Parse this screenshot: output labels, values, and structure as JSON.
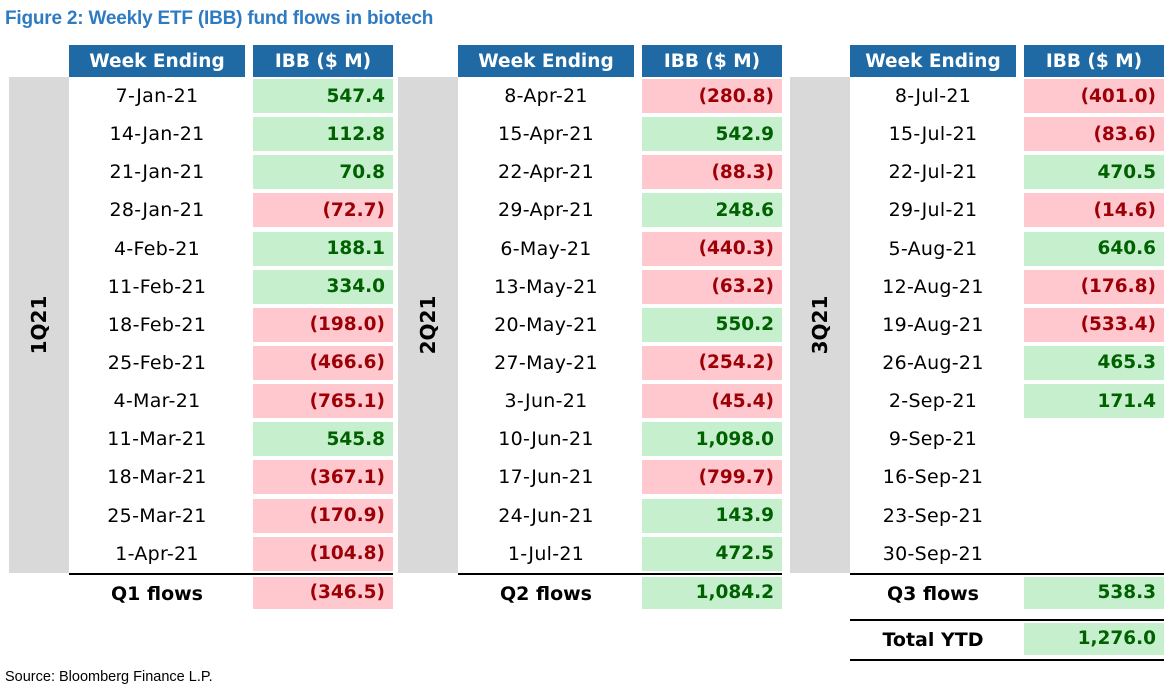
{
  "title": "Figure 2: Weekly ETF (IBB) fund flows in biotech",
  "source": "Source: Bloomberg Finance L.P.",
  "colors": {
    "header_bg": "#1f6aa5",
    "title": "#2f7bc2",
    "positive_bg": "#c6efce",
    "positive_text": "#006100",
    "negative_bg": "#ffc7ce",
    "negative_text": "#9c0006",
    "quarter_bg": "#d9d9d9"
  },
  "tables": [
    {
      "quarter": "1Q21",
      "header_week": "Week Ending",
      "header_ibb": "IBB ($ M)",
      "rows": [
        {
          "date": "7-Jan-21",
          "value": "547.4",
          "sign": "pos"
        },
        {
          "date": "14-Jan-21",
          "value": "112.8",
          "sign": "pos"
        },
        {
          "date": "21-Jan-21",
          "value": "70.8",
          "sign": "pos"
        },
        {
          "date": "28-Jan-21",
          "value": "(72.7)",
          "sign": "neg"
        },
        {
          "date": "4-Feb-21",
          "value": "188.1",
          "sign": "pos"
        },
        {
          "date": "11-Feb-21",
          "value": "334.0",
          "sign": "pos"
        },
        {
          "date": "18-Feb-21",
          "value": "(198.0)",
          "sign": "neg"
        },
        {
          "date": "25-Feb-21",
          "value": "(466.6)",
          "sign": "neg"
        },
        {
          "date": "4-Mar-21",
          "value": "(765.1)",
          "sign": "neg"
        },
        {
          "date": "11-Mar-21",
          "value": "545.8",
          "sign": "pos"
        },
        {
          "date": "18-Mar-21",
          "value": "(367.1)",
          "sign": "neg"
        },
        {
          "date": "25-Mar-21",
          "value": "(170.9)",
          "sign": "neg"
        },
        {
          "date": "1-Apr-21",
          "value": "(104.8)",
          "sign": "neg"
        }
      ],
      "summary": [
        {
          "label": "Q1 flows",
          "value": "(346.5)",
          "sign": "neg"
        }
      ]
    },
    {
      "quarter": "2Q21",
      "header_week": "Week Ending",
      "header_ibb": "IBB ($ M)",
      "rows": [
        {
          "date": "8-Apr-21",
          "value": "(280.8)",
          "sign": "neg"
        },
        {
          "date": "15-Apr-21",
          "value": "542.9",
          "sign": "pos"
        },
        {
          "date": "22-Apr-21",
          "value": "(88.3)",
          "sign": "neg"
        },
        {
          "date": "29-Apr-21",
          "value": "248.6",
          "sign": "pos"
        },
        {
          "date": "6-May-21",
          "value": "(440.3)",
          "sign": "neg"
        },
        {
          "date": "13-May-21",
          "value": "(63.2)",
          "sign": "neg"
        },
        {
          "date": "20-May-21",
          "value": "550.2",
          "sign": "pos"
        },
        {
          "date": "27-May-21",
          "value": "(254.2)",
          "sign": "neg"
        },
        {
          "date": "3-Jun-21",
          "value": "(45.4)",
          "sign": "neg"
        },
        {
          "date": "10-Jun-21",
          "value": "1,098.0",
          "sign": "pos"
        },
        {
          "date": "17-Jun-21",
          "value": "(799.7)",
          "sign": "neg"
        },
        {
          "date": "24-Jun-21",
          "value": "143.9",
          "sign": "pos"
        },
        {
          "date": "1-Jul-21",
          "value": "472.5",
          "sign": "pos"
        }
      ],
      "summary": [
        {
          "label": "Q2 flows",
          "value": "1,084.2",
          "sign": "pos"
        }
      ]
    },
    {
      "quarter": "3Q21",
      "header_week": "Week Ending",
      "header_ibb": "IBB ($ M)",
      "rows": [
        {
          "date": "8-Jul-21",
          "value": "(401.0)",
          "sign": "neg"
        },
        {
          "date": "15-Jul-21",
          "value": "(83.6)",
          "sign": "neg"
        },
        {
          "date": "22-Jul-21",
          "value": "470.5",
          "sign": "pos"
        },
        {
          "date": "29-Jul-21",
          "value": "(14.6)",
          "sign": "neg"
        },
        {
          "date": "5-Aug-21",
          "value": "640.6",
          "sign": "pos"
        },
        {
          "date": "12-Aug-21",
          "value": "(176.8)",
          "sign": "neg"
        },
        {
          "date": "19-Aug-21",
          "value": "(533.4)",
          "sign": "neg"
        },
        {
          "date": "26-Aug-21",
          "value": "465.3",
          "sign": "pos"
        },
        {
          "date": "2-Sep-21",
          "value": "171.4",
          "sign": "pos"
        },
        {
          "date": "9-Sep-21",
          "value": "",
          "sign": "none"
        },
        {
          "date": "16-Sep-21",
          "value": "",
          "sign": "none"
        },
        {
          "date": "23-Sep-21",
          "value": "",
          "sign": "none"
        },
        {
          "date": "30-Sep-21",
          "value": "",
          "sign": "none"
        }
      ],
      "summary": [
        {
          "label": "Q3 flows",
          "value": "538.3",
          "sign": "pos"
        },
        {
          "label": "Total YTD",
          "value": "1,276.0",
          "sign": "pos"
        }
      ]
    }
  ]
}
